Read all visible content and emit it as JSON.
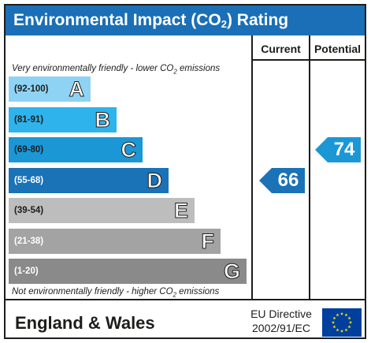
{
  "title_main": "Environmental Impact (CO",
  "title_sub": "2",
  "title_end": ") Rating",
  "columns": {
    "current": "Current",
    "potential": "Potential"
  },
  "caption_top": {
    "before": "Very environmentally friendly - lower CO",
    "sub": "2",
    "after": " emissions"
  },
  "caption_bottom": {
    "before": "Not environmentally friendly - higher CO",
    "sub": "2",
    "after": " emissions"
  },
  "bands": [
    {
      "range": "(92-100)",
      "letter": "A",
      "color": "#8fd3f4",
      "text_color": "#1d1d1b"
    },
    {
      "range": "(81-91)",
      "letter": "B",
      "color": "#2fb3ec",
      "text_color": "#1d1d1b"
    },
    {
      "range": "(69-80)",
      "letter": "C",
      "color": "#1b97d6",
      "text_color": "#1d1d1b"
    },
    {
      "range": "(55-68)",
      "letter": "D",
      "color": "#1a72b7",
      "text_color": "#ffffff"
    },
    {
      "range": "(39-54)",
      "letter": "E",
      "color": "#bdbdbd",
      "text_color": "#1d1d1b"
    },
    {
      "range": "(21-38)",
      "letter": "F",
      "color": "#a3a3a3",
      "text_color": "#ffffff"
    },
    {
      "range": "(1-20)",
      "letter": "G",
      "color": "#8a8a8a",
      "text_color": "#ffffff"
    }
  ],
  "current": {
    "value": "66",
    "band": "D",
    "color": "#1a72b7"
  },
  "potential": {
    "value": "74",
    "band": "C",
    "color": "#1b97d6"
  },
  "footer": {
    "region": "England & Wales",
    "directive_line1": "EU Directive",
    "directive_line2": "2002/91/EC"
  },
  "colors": {
    "header": "#1a6fb6",
    "flag_blue": "#003f9e",
    "flag_star": "#ffdd00"
  }
}
